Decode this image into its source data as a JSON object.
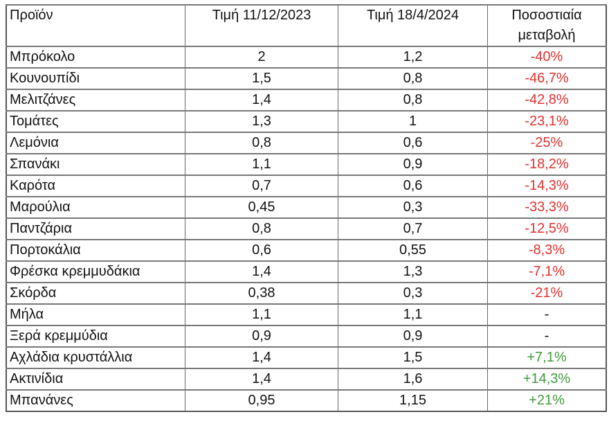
{
  "headers": [
    "Προϊόν",
    "Τιμή 11/12/2023",
    "Τιμή 18/4/2024",
    "Ποσοστιαία μεταβολή"
  ],
  "colors": {
    "negative": "#e0312f",
    "positive": "#3f9a3a"
  },
  "rows": [
    {
      "product": "Μπρόκολο",
      "price_2023": "2",
      "price_2024": "1,2",
      "change": "-40%",
      "trend": "neg"
    },
    {
      "product": "Κουνουπίδι",
      "price_2023": "1,5",
      "price_2024": "0,8",
      "change": "-46,7%",
      "trend": "neg"
    },
    {
      "product": "Μελιτζάνες",
      "price_2023": "1,4",
      "price_2024": "0,8",
      "change": "-42,8%",
      "trend": "neg"
    },
    {
      "product": "Τομάτες",
      "price_2023": "1,3",
      "price_2024": "1",
      "change": "-23,1%",
      "trend": "neg"
    },
    {
      "product": "Λεμόνια",
      "price_2023": "0,8",
      "price_2024": "0,6",
      "change": "-25%",
      "trend": "neg"
    },
    {
      "product": "Σπανάκι",
      "price_2023": "1,1",
      "price_2024": "0,9",
      "change": "-18,2%",
      "trend": "neg"
    },
    {
      "product": "Καρότα",
      "price_2023": "0,7",
      "price_2024": "0,6",
      "change": "-14,3%",
      "trend": "neg"
    },
    {
      "product": "Μαρούλια",
      "price_2023": "0,45",
      "price_2024": "0,3",
      "change": "-33,3%",
      "trend": "neg"
    },
    {
      "product": "Παντζάρια",
      "price_2023": "0,8",
      "price_2024": "0,7",
      "change": "-12,5%",
      "trend": "neg"
    },
    {
      "product": "Πορτοκάλια",
      "price_2023": "0,6",
      "price_2024": "0,55",
      "change": "-8,3%",
      "trend": "neg"
    },
    {
      "product": "Φρέσκα κρεμμυδάκια",
      "price_2023": "1,4",
      "price_2024": "1,3",
      "change": "-7,1%",
      "trend": "neg"
    },
    {
      "product": "Σκόρδα",
      "price_2023": "0,38",
      "price_2024": "0,3",
      "change": "-21%",
      "trend": "neg"
    },
    {
      "product": "Μήλα",
      "price_2023": "1,1",
      "price_2024": "1,1",
      "change": "-",
      "trend": "none"
    },
    {
      "product": "Ξερά κρεμμύδια",
      "price_2023": "0,9",
      "price_2024": "0,9",
      "change": "-",
      "trend": "none"
    },
    {
      "product": "Αχλάδια κρυστάλλια",
      "price_2023": "1,4",
      "price_2024": "1,5",
      "change": "+7,1%",
      "trend": "pos"
    },
    {
      "product": "Ακτινίδια",
      "price_2023": "1,4",
      "price_2024": "1,6",
      "change": "+14,3%",
      "trend": "pos"
    },
    {
      "product": "Μπανάνες",
      "price_2023": "0,95",
      "price_2024": "1,15",
      "change": "+21%",
      "trend": "pos"
    }
  ]
}
